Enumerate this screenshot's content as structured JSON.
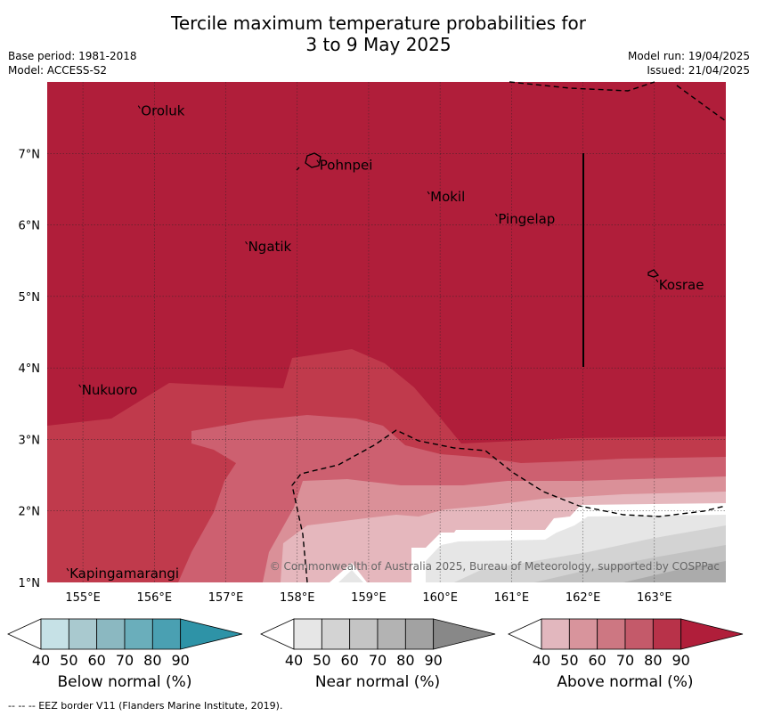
{
  "title_line1": "Tercile maximum temperature probabilities for",
  "title_line2": "3 to 9 May 2025",
  "meta": {
    "base_period": "Base period: 1981-2018",
    "model": "Model: ACCESS-S2",
    "model_run": "Model run: 19/04/2025",
    "issued": "Issued: 21/04/2025"
  },
  "map": {
    "lat_labels": [
      "7°N",
      "6°N",
      "5°N",
      "4°N",
      "3°N",
      "2°N",
      "1°N"
    ],
    "lon_labels": [
      "155°E",
      "156°E",
      "157°E",
      "158°E",
      "159°E",
      "160°E",
      "161°E",
      "162°E",
      "163°E"
    ],
    "lat_range": [
      1,
      8
    ],
    "lon_range": [
      154.5,
      164
    ],
    "places": [
      {
        "name": "Oroluk",
        "lon": 155.8,
        "lat": 7.63
      },
      {
        "name": "Pohnpei",
        "lon": 158.3,
        "lat": 6.87
      },
      {
        "name": "Mokil",
        "lon": 159.85,
        "lat": 6.43
      },
      {
        "name": "Pingelap",
        "lon": 160.8,
        "lat": 6.12
      },
      {
        "name": "Ngatik",
        "lon": 157.3,
        "lat": 5.73
      },
      {
        "name": "Kosrae",
        "lon": 163.05,
        "lat": 5.2
      },
      {
        "name": "Nukuoro",
        "lon": 154.97,
        "lat": 3.73
      },
      {
        "name": "Kapingamarangi",
        "lon": 154.8,
        "lat": 1.16
      }
    ],
    "copyright": "© Commonwealth of Australia 2025, Bureau of Meteorology, supported by COSPPac",
    "colors": {
      "above_80_90": "#b01e3a",
      "above_70_80": "#c03a4c",
      "above_60_70": "#cd6070",
      "above_50_60": "#da9098",
      "above_40_50": "#e5b7bd",
      "near_40_50": "#e6e6e6",
      "near_50_60": "#d3d3d3",
      "near_60_70": "#c2c2c2",
      "near_70_80": "#ababab"
    }
  },
  "legends": [
    {
      "title": "Below normal (%)",
      "ticks": [
        "40",
        "50",
        "60",
        "70",
        "80",
        "90"
      ],
      "colors": [
        "#c6e1e6",
        "#a9c9cf",
        "#8bb8c1",
        "#6aaebb",
        "#4aa0b2",
        "#2e93a7"
      ]
    },
    {
      "title": "Near normal (%)",
      "ticks": [
        "40",
        "50",
        "60",
        "70",
        "80",
        "90"
      ],
      "colors": [
        "#e6e6e6",
        "#d3d3d3",
        "#c4c4c4",
        "#b3b3b3",
        "#a2a2a2",
        "#888888"
      ]
    },
    {
      "title": "Above normal (%)",
      "ticks": [
        "40",
        "50",
        "60",
        "70",
        "80",
        "90"
      ],
      "colors": [
        "#e2b7be",
        "#d8949c",
        "#cd7782",
        "#c45a6a",
        "#b83249",
        "#b01e3a"
      ]
    }
  ],
  "footnote": "--  --  -- EEZ border V11 (Flanders Marine Institute, 2019)."
}
